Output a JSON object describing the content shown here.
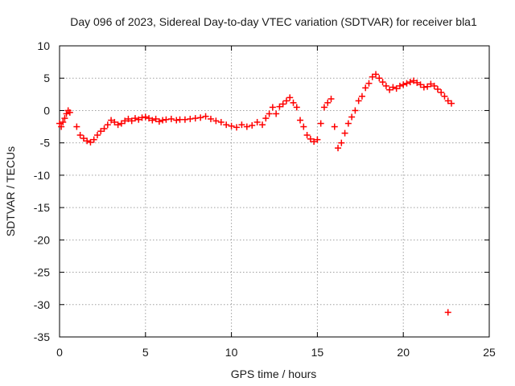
{
  "chart_data": {
    "type": "scatter",
    "title": "Day 096 of 2023, Sidereal Day-to-day VTEC variation (SDTVAR) for receiver bla1",
    "xlabel": "GPS time / hours",
    "ylabel": "SDTVAR / TECUs",
    "xlim": [
      0,
      25
    ],
    "ylim": [
      -35,
      10
    ],
    "xticks": [
      0,
      5,
      10,
      15,
      20,
      25
    ],
    "xtick_labels": [
      "0",
      "5",
      "10",
      "15",
      "20",
      "25"
    ],
    "yticks": [
      10,
      5,
      0,
      -5,
      -10,
      -15,
      -20,
      -25,
      -30,
      -35
    ],
    "ytick_labels": [
      "10",
      "5",
      "0",
      "-5",
      "-10",
      "-15",
      "-20",
      "-25",
      "-30",
      "-35"
    ],
    "grid": true,
    "marker": "+",
    "color": "#ff0000",
    "series": [
      {
        "name": "SDTVAR",
        "x": [
          0.0,
          0.1,
          0.2,
          0.3,
          0.4,
          0.5,
          0.6,
          1.0,
          1.2,
          1.4,
          1.6,
          1.8,
          2.0,
          2.2,
          2.4,
          2.6,
          2.8,
          3.0,
          3.2,
          3.4,
          3.6,
          3.8,
          4.0,
          4.2,
          4.4,
          4.6,
          4.8,
          5.0,
          5.2,
          5.4,
          5.6,
          5.8,
          6.0,
          6.2,
          6.5,
          6.8,
          7.0,
          7.3,
          7.6,
          7.9,
          8.2,
          8.5,
          8.8,
          9.1,
          9.4,
          9.7,
          10.0,
          10.3,
          10.6,
          10.9,
          11.2,
          11.5,
          11.8,
          12.0,
          12.2,
          12.4,
          12.6,
          12.8,
          13.0,
          13.2,
          13.4,
          13.6,
          13.8,
          14.0,
          14.2,
          14.4,
          14.6,
          14.8,
          15.0,
          15.2,
          15.4,
          15.6,
          15.8,
          16.0,
          16.2,
          16.4,
          16.6,
          16.8,
          17.0,
          17.2,
          17.4,
          17.6,
          17.8,
          18.0,
          18.2,
          18.4,
          18.6,
          18.8,
          19.0,
          19.2,
          19.4,
          19.6,
          19.8,
          20.0,
          20.2,
          20.4,
          20.6,
          20.8,
          21.0,
          21.2,
          21.4,
          21.6,
          21.8,
          22.0,
          22.2,
          22.4,
          22.6,
          22.8,
          22.6
        ],
        "y": [
          -2.0,
          -2.5,
          -1.8,
          -1.2,
          -0.5,
          0.0,
          -0.3,
          -2.5,
          -3.8,
          -4.3,
          -4.7,
          -4.9,
          -4.5,
          -3.8,
          -3.2,
          -2.8,
          -2.2,
          -1.5,
          -1.8,
          -2.2,
          -2.0,
          -1.6,
          -1.3,
          -1.6,
          -1.2,
          -1.4,
          -1.1,
          -1.0,
          -1.2,
          -1.5,
          -1.3,
          -1.7,
          -1.5,
          -1.4,
          -1.3,
          -1.5,
          -1.4,
          -1.4,
          -1.3,
          -1.2,
          -1.1,
          -0.9,
          -1.3,
          -1.6,
          -1.8,
          -2.2,
          -2.4,
          -2.6,
          -2.2,
          -2.5,
          -2.3,
          -1.8,
          -2.2,
          -1.2,
          -0.5,
          0.5,
          -0.5,
          0.6,
          1.0,
          1.5,
          2.0,
          1.2,
          0.5,
          -1.5,
          -2.5,
          -3.8,
          -4.4,
          -4.8,
          -4.5,
          -2.0,
          0.5,
          1.2,
          1.8,
          -2.5,
          -5.8,
          -5.0,
          -3.5,
          -2.0,
          -1.0,
          0.0,
          1.5,
          2.2,
          3.5,
          4.2,
          5.2,
          5.6,
          5.0,
          4.4,
          3.8,
          3.2,
          3.6,
          3.4,
          3.8,
          4.0,
          4.2,
          4.4,
          4.6,
          4.3,
          4.0,
          3.6,
          3.7,
          4.1,
          3.8,
          3.3,
          2.8,
          2.2,
          1.5,
          1.1,
          -31.2
        ]
      }
    ]
  }
}
